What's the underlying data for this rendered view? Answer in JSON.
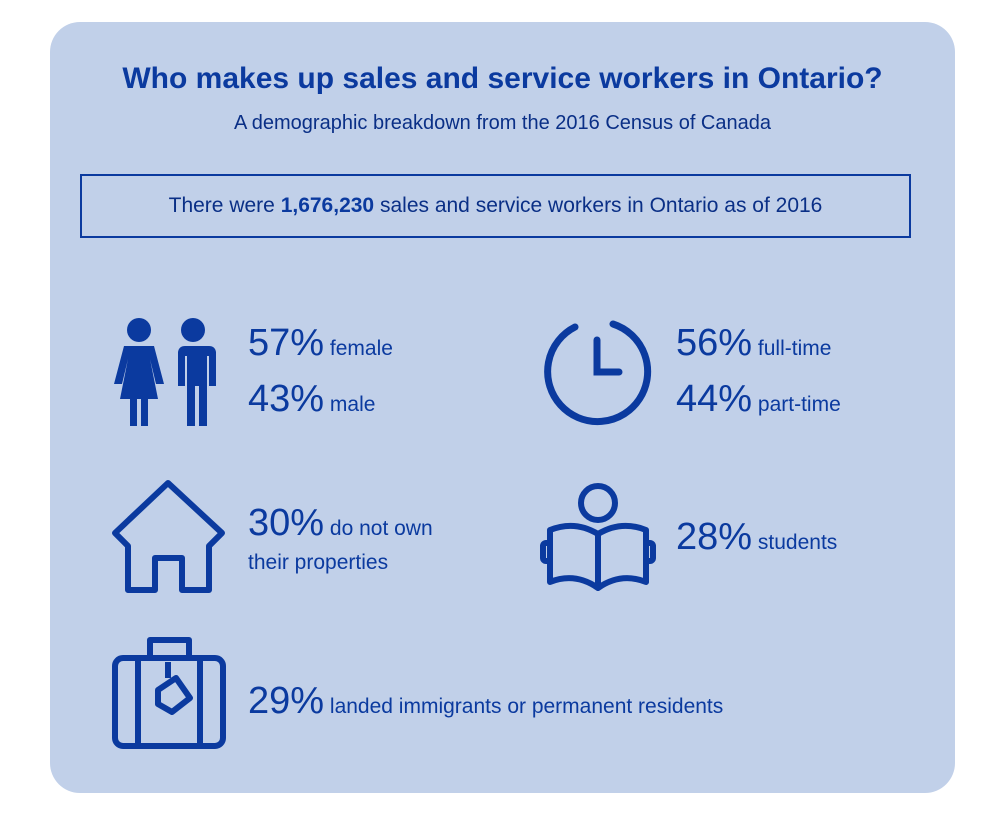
{
  "header": {
    "title": "Who makes up sales and service workers in Ontario?",
    "subtitle": "A demographic breakdown from the 2016 Census of Canada"
  },
  "banner": {
    "before": "There were",
    "highlight": "1,676,230",
    "after": "sales and service workers in Ontario as of 2016"
  },
  "stats": [
    {
      "items": [
        {
          "percent": "57%",
          "label": "female"
        },
        {
          "percent": "43%",
          "label": "male"
        }
      ]
    },
    {
      "items": [
        {
          "percent": "56%",
          "label": "full-time"
        },
        {
          "percent": "44%",
          "label": "part-time"
        }
      ]
    },
    {
      "items": [
        {
          "percent": "30%",
          "label": "do not own their properties"
        }
      ]
    },
    {
      "items": [
        {
          "percent": "28%",
          "label": "students"
        }
      ]
    },
    {
      "items": [
        {
          "percent": "29%",
          "label": "landed immigrants or permanent residents"
        }
      ]
    }
  ]
}
